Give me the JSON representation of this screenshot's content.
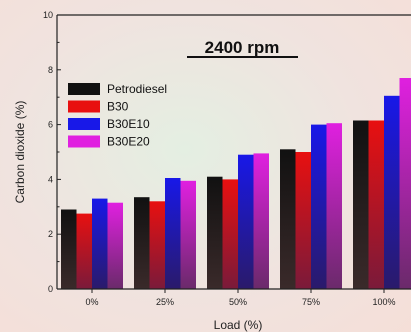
{
  "chart_data": {
    "type": "bar",
    "title": "2400 rpm",
    "xlabel": "Load (%)",
    "ylabel": "Carbon dioxide (%)",
    "categories": [
      "0%",
      "25%",
      "50%",
      "75%",
      "100%"
    ],
    "ylim": [
      0,
      10
    ],
    "yticks": [
      0,
      2,
      4,
      6,
      8,
      10
    ],
    "grid": false,
    "legend_position": "upper-left",
    "series": [
      {
        "name": "Petrodiesel",
        "color": "#111111",
        "values": [
          2.9,
          3.35,
          4.1,
          5.1,
          6.15
        ]
      },
      {
        "name": "B30",
        "color": "#e81010",
        "values": [
          2.75,
          3.2,
          4.0,
          5.0,
          6.15
        ]
      },
      {
        "name": "B30E10",
        "color": "#1818e8",
        "values": [
          3.3,
          4.05,
          4.9,
          6.0,
          7.05
        ]
      },
      {
        "name": "B30E20",
        "color": "#e020e0",
        "values": [
          3.15,
          3.95,
          4.95,
          6.05,
          7.7
        ]
      }
    ]
  }
}
